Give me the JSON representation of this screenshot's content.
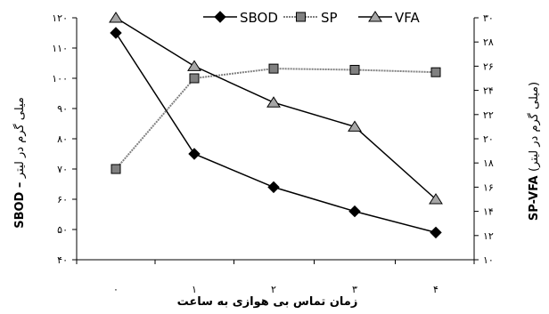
{
  "chart_data": {
    "type": "line",
    "categories": [
      "۰",
      "۱",
      "۲",
      "۳",
      "۴"
    ],
    "x": [
      0,
      1,
      2,
      3,
      4
    ],
    "xlabel": "زمان تماس بی هوازی به ساعت",
    "y_left": {
      "label": "میلی گرم در لیتر",
      "label_bold": "SBOD",
      "range": [
        40,
        120
      ],
      "ticks": [
        40,
        50,
        60,
        70,
        80,
        90,
        100,
        110,
        120
      ],
      "tick_labels": [
        "۴۰",
        "۵۰",
        "۶۰",
        "۷۰",
        "۸۰",
        "۹۰",
        "۱۰۰",
        "۱۱۰",
        "۱۲۰"
      ]
    },
    "y_right": {
      "label": "(میلی گرم در لیتر)",
      "label_bold": "SP-VFA",
      "range": [
        10,
        30
      ],
      "ticks": [
        10,
        12,
        14,
        16,
        18,
        20,
        22,
        24,
        26,
        28,
        30
      ],
      "tick_labels": [
        "۱۰",
        "۱۲",
        "۱۴",
        "۱۶",
        "۱۸",
        "۲۰",
        "۲۲",
        "۲۴",
        "۲۶",
        "۲۸",
        "۳۰"
      ]
    },
    "legend_position": "top-right",
    "series": [
      {
        "name": "SBOD",
        "axis": "left",
        "marker": "diamond",
        "color": "#000000",
        "line": "solid",
        "values": [
          115,
          75,
          64,
          56,
          49
        ]
      },
      {
        "name": "SP",
        "axis": "right",
        "marker": "square",
        "color": "#808080",
        "line": "dotted",
        "values": [
          17.5,
          25,
          25.8,
          25.7,
          25.5
        ]
      },
      {
        "name": "VFA",
        "axis": "right",
        "marker": "triangle",
        "color": "#000000",
        "line": "solid",
        "values": [
          30,
          26,
          23,
          21,
          15
        ]
      }
    ]
  }
}
